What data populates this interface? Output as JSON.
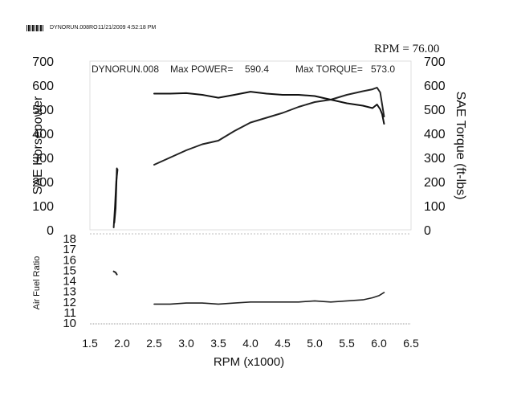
{
  "header": {
    "file": "DYNORUN.008RO",
    "datetime": "11/21/2009 4:52:18 PM",
    "rpm_readout": "RPM = 76.00"
  },
  "chart_data": [
    {
      "type": "line",
      "panel": "top",
      "title": "DYNORUN.008",
      "max_power_label": "Max POWER=",
      "max_power": "590.4",
      "max_torque_label": "Max TORQUE=",
      "max_torque": "573.0",
      "xlabel": "RPM (x1000)",
      "xlim": [
        1.5,
        6.5
      ],
      "xticks": [
        "1.5",
        "2.0",
        "2.5",
        "3.0",
        "3.5",
        "4.0",
        "4.5",
        "5.0",
        "5.5",
        "6.0",
        "6.5"
      ],
      "ylabel_left": "SAE Horsepower",
      "ylabel_right": "SAE Torque (ft-lbs)",
      "ylim": [
        0,
        700
      ],
      "yticks": [
        "0",
        "100",
        "200",
        "300",
        "400",
        "500",
        "600",
        "700"
      ],
      "series": [
        {
          "name": "Horsepower",
          "color": "#222222",
          "x": [
            1.87,
            1.89,
            1.91,
            1.93
          ],
          "y": [
            10,
            95,
            200,
            250
          ],
          "x2": [
            2.5,
            2.75,
            3.0,
            3.25,
            3.5,
            3.75,
            4.0,
            4.25,
            4.5,
            4.75,
            5.0,
            5.25,
            5.5,
            5.75,
            5.9,
            5.97,
            6.02,
            6.05,
            6.08
          ],
          "y2": [
            270,
            300,
            330,
            355,
            370,
            410,
            445,
            465,
            485,
            510,
            530,
            540,
            560,
            575,
            583,
            590,
            570,
            520,
            470
          ]
        },
        {
          "name": "Torque",
          "color": "#111111",
          "x": [
            1.88,
            1.9,
            1.92
          ],
          "y": [
            30,
            90,
            255
          ],
          "x2": [
            2.5,
            2.75,
            3.0,
            3.25,
            3.5,
            3.75,
            4.0,
            4.25,
            4.5,
            4.75,
            5.0,
            5.25,
            5.5,
            5.75,
            5.9,
            5.97,
            6.02,
            6.05,
            6.08
          ],
          "y2": [
            565,
            565,
            567,
            560,
            548,
            560,
            573,
            565,
            560,
            560,
            555,
            540,
            525,
            515,
            505,
            520,
            500,
            480,
            440
          ]
        }
      ]
    },
    {
      "type": "line",
      "panel": "bottom",
      "ylabel": "Air Fuel Ratio",
      "ylim": [
        10,
        18
      ],
      "yticks": [
        "10",
        "11",
        "12",
        "13",
        "14",
        "15",
        "16",
        "17",
        "18"
      ],
      "xlim": [
        1.5,
        6.5
      ],
      "series": [
        {
          "name": "AFR",
          "color": "#222222",
          "x": [
            1.87,
            1.9,
            1.92
          ],
          "y": [
            14.9,
            14.8,
            14.6
          ],
          "x2": [
            2.5,
            2.75,
            3.0,
            3.25,
            3.5,
            3.75,
            4.0,
            4.25,
            4.5,
            4.75,
            5.0,
            5.25,
            5.5,
            5.75,
            5.9,
            6.0,
            6.08
          ],
          "y2": [
            11.8,
            11.8,
            11.9,
            11.9,
            11.8,
            11.9,
            12.0,
            12.0,
            12.0,
            12.0,
            12.1,
            12.0,
            12.1,
            12.2,
            12.4,
            12.6,
            12.9
          ]
        }
      ]
    }
  ]
}
